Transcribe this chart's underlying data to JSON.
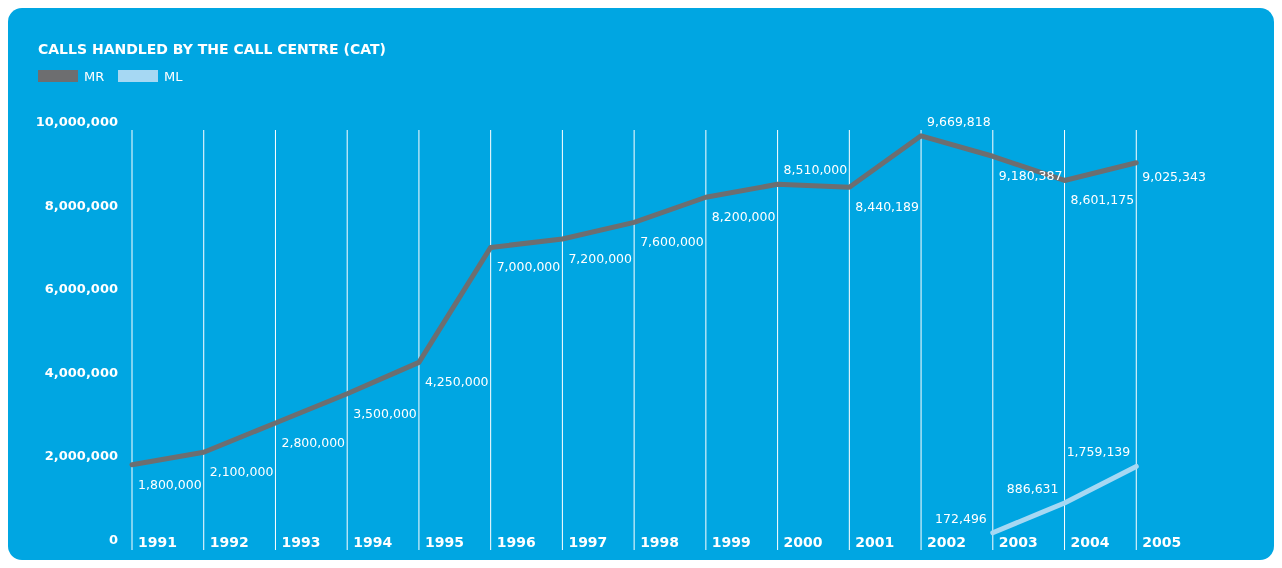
{
  "chart_data": {
    "type": "line",
    "title": "CALLS HANDLED BY THE CALL CENTRE  (CAT)",
    "categories": [
      "1991",
      "1992",
      "1993",
      "1994",
      "1995",
      "1996",
      "1997",
      "1998",
      "1999",
      "2000",
      "2001",
      "2002",
      "2003",
      "2004",
      "2005"
    ],
    "series": [
      {
        "name": "MR",
        "color": "#6d6e70",
        "values": [
          1800000,
          2100000,
          2800000,
          3500000,
          4250000,
          7000000,
          7200000,
          7600000,
          8200000,
          8510000,
          8440189,
          9669818,
          9180387,
          8601175,
          9025343
        ],
        "value_labels": [
          "1,800,000",
          "2,100,000",
          "2,800,000",
          "3,500,000",
          "4,250,000",
          "7,000,000",
          "7,200,000",
          "7,600,000",
          "8,200,000",
          "8,510,000",
          "8,440,189",
          "9,669,818",
          "9,180,387",
          "8,601,175",
          "9,025,343"
        ]
      },
      {
        "name": "ML",
        "color": "#a6d8f3",
        "values": [
          null,
          null,
          null,
          null,
          null,
          null,
          null,
          null,
          null,
          null,
          null,
          null,
          172496,
          886631,
          1759139
        ],
        "value_labels": [
          null,
          null,
          null,
          null,
          null,
          null,
          null,
          null,
          null,
          null,
          null,
          null,
          "172,496",
          "886,631",
          "1,759,139"
        ]
      }
    ],
    "ylim": [
      0,
      10000000
    ],
    "yticks": [
      {
        "value": 0,
        "label": "0"
      },
      {
        "value": 2000000,
        "label": "2,000,000"
      },
      {
        "value": 4000000,
        "label": "4,000,000"
      },
      {
        "value": 6000000,
        "label": "6,000,000"
      },
      {
        "value": 8000000,
        "label": "8,000,000"
      },
      {
        "value": 10000000,
        "label": "10,000,000"
      }
    ],
    "grid": "x",
    "legend": "top left",
    "marker": "none",
    "line_style": "solid"
  }
}
